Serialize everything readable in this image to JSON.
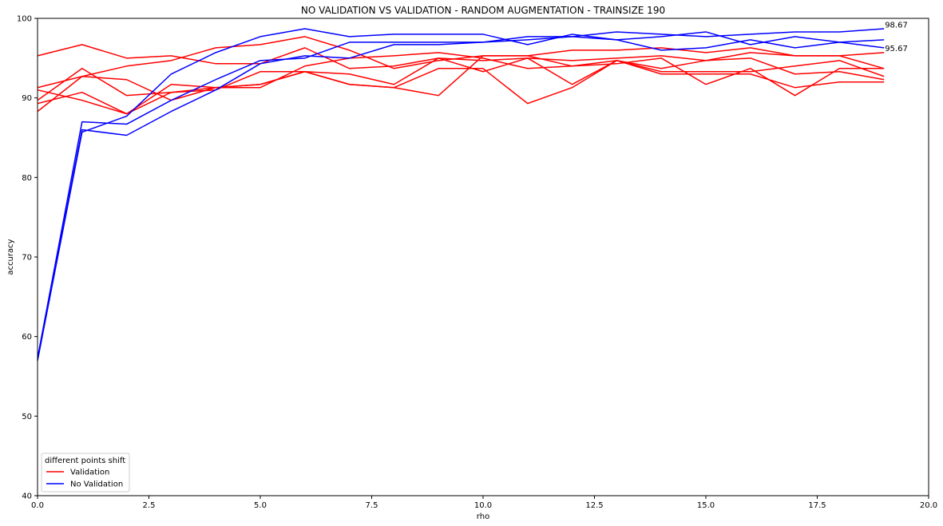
{
  "chart_data": {
    "type": "line",
    "title": "NO VALIDATION VS VALIDATION - RANDOM AUGMENTATION - TRAINSIZE 190",
    "xlabel": "rho",
    "ylabel": "accuracy",
    "xlim": [
      0,
      20
    ],
    "ylim": [
      40,
      100
    ],
    "xticks": [
      "0.0",
      "2.5",
      "5.0",
      "7.5",
      "10.0",
      "12.5",
      "15.0",
      "17.5",
      "20.0"
    ],
    "yticks": [
      "40",
      "50",
      "60",
      "70",
      "80",
      "90",
      "100"
    ],
    "grid": false,
    "legend": {
      "title": "different points shift",
      "placement": "lower-left",
      "entries": [
        {
          "label": "Validation",
          "color": "#ff0000"
        },
        {
          "label": "No Validation",
          "color": "#0000ff"
        }
      ]
    },
    "x": [
      0,
      1,
      2,
      3,
      4,
      5,
      6,
      7,
      8,
      9,
      10,
      11,
      12,
      13,
      14,
      15,
      16,
      17,
      18,
      19
    ],
    "series": [
      {
        "group": "Validation",
        "color": "#ff0000",
        "values": [
          95.3,
          96.7,
          95.0,
          95.3,
          94.3,
          94.3,
          96.3,
          93.7,
          94.0,
          95.0,
          94.7,
          95.0,
          94.7,
          95.0,
          95.3,
          94.7,
          95.0,
          93.0,
          93.3,
          92.3
        ]
      },
      {
        "group": "Validation",
        "color": "#ff0000",
        "values": [
          91.3,
          92.7,
          94.0,
          94.7,
          96.3,
          96.7,
          97.7,
          96.0,
          93.7,
          94.7,
          95.3,
          95.3,
          96.0,
          96.0,
          96.3,
          95.7,
          96.3,
          95.3,
          95.3,
          93.7
        ]
      },
      {
        "group": "Validation",
        "color": "#ff0000",
        "values": [
          89.7,
          93.7,
          90.3,
          90.7,
          91.0,
          93.3,
          93.3,
          93.0,
          91.7,
          95.0,
          93.3,
          95.0,
          91.7,
          94.7,
          93.7,
          94.7,
          95.7,
          95.3,
          95.3,
          95.7
        ]
      },
      {
        "group": "Validation",
        "color": "#ff0000",
        "values": [
          91.0,
          89.7,
          88.0,
          91.7,
          91.3,
          91.7,
          93.3,
          91.7,
          91.3,
          90.3,
          95.3,
          95.3,
          94.0,
          94.3,
          95.0,
          91.7,
          93.7,
          90.3,
          93.7,
          93.7
        ]
      },
      {
        "group": "Validation",
        "color": "#ff0000",
        "values": [
          88.3,
          92.7,
          92.3,
          89.7,
          91.3,
          91.3,
          94.0,
          95.0,
          95.3,
          95.7,
          95.0,
          93.7,
          94.0,
          94.7,
          93.3,
          93.3,
          93.3,
          94.0,
          94.7,
          92.7
        ]
      },
      {
        "group": "Validation",
        "color": "#ff0000",
        "values": [
          89.3,
          90.7,
          88.0,
          90.7,
          91.3,
          91.7,
          93.3,
          91.7,
          91.3,
          93.7,
          93.7,
          89.3,
          91.3,
          94.7,
          93.0,
          93.0,
          93.0,
          91.3,
          92.0,
          92.0
        ]
      },
      {
        "group": "No Validation",
        "color": "#0000ff",
        "values": [
          57.3,
          87.0,
          86.7,
          89.7,
          92.3,
          94.7,
          95.0,
          97.0,
          97.0,
          97.0,
          97.0,
          97.7,
          97.7,
          97.3,
          97.7,
          98.3,
          96.7,
          97.7,
          97.0,
          96.3
        ]
      },
      {
        "group": "No Validation",
        "color": "#0000ff",
        "values": [
          57.0,
          85.7,
          87.7,
          93.0,
          95.7,
          97.7,
          98.7,
          97.7,
          98.0,
          98.0,
          98.0,
          96.7,
          98.0,
          97.3,
          96.0,
          96.3,
          97.3,
          96.3,
          97.0,
          97.3
        ]
      },
      {
        "group": "No Validation",
        "color": "#0000ff",
        "values": [
          57.0,
          86.0,
          85.3,
          88.3,
          91.0,
          94.3,
          95.3,
          95.0,
          96.7,
          96.7,
          97.0,
          97.3,
          97.7,
          98.3,
          98.0,
          97.7,
          98.0,
          98.3,
          98.3,
          98.7
        ]
      }
    ],
    "annotations": [
      {
        "text": "98.67",
        "x": 19,
        "y": 98.67
      },
      {
        "text": "95.67",
        "x": 19,
        "y": 95.67
      }
    ]
  }
}
